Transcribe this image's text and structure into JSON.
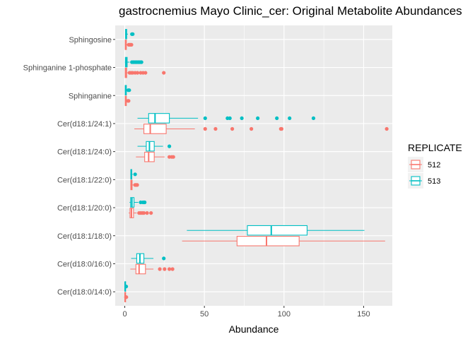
{
  "chart_data": {
    "type": "boxplot",
    "orientation": "horizontal",
    "title": "gastrocnemius Mayo Clinic_cer: Original Metabolite Abundances",
    "xlabel": "Abundance",
    "ylabel": "",
    "xlim": [
      -6,
      168
    ],
    "xticks": [
      0,
      50,
      100,
      150
    ],
    "grid": true,
    "legend": {
      "title": "REPLICATE",
      "placement": "right"
    },
    "categories": [
      "Sphingosine",
      "Sphinganine 1-phosphate",
      "Sphinganine",
      "Cer(d18:1/24:1)",
      "Cer(d18:1/24:0)",
      "Cer(d18:1/22:0)",
      "Cer(d18:1/20:0)",
      "Cer(d18:1/18:0)",
      "Cer(d18:0/16:0)",
      "Cer(d18:0/14:0)"
    ],
    "series": [
      {
        "name": "512",
        "color": "#F8766D",
        "boxes": [
          {
            "whisker_low": 0.1,
            "q1": 0.3,
            "median": 0.6,
            "q3": 1.0,
            "whisker_high": 2.0,
            "outliers": [
              2.5,
              3.0,
              3.6,
              4.2
            ]
          },
          {
            "whisker_low": 0.1,
            "q1": 0.3,
            "median": 0.6,
            "q3": 1.2,
            "whisker_high": 2.5,
            "outliers": [
              3.0,
              4.0,
              5.0,
              6.5,
              8.0,
              10.0,
              11.5,
              13.0,
              24.5
            ]
          },
          {
            "whisker_low": 0.1,
            "q1": 0.3,
            "median": 0.6,
            "q3": 1.0,
            "whisker_high": 1.5,
            "outliers": [
              2.0,
              2.4
            ]
          },
          {
            "whisker_low": 6.0,
            "q1": 12.0,
            "median": 16.0,
            "q3": 26.0,
            "whisker_high": 44.0,
            "outliers": [
              50.5,
              57.0,
              67.5,
              79.5,
              98.0,
              98.5,
              164.5
            ]
          },
          {
            "whisker_low": 7.0,
            "q1": 12.5,
            "median": 15.0,
            "q3": 18.5,
            "whisker_high": 25.0,
            "outliers": [
              28.0,
              29.5,
              30.5
            ]
          },
          {
            "whisker_low": 3.5,
            "q1": 3.8,
            "median": 4.1,
            "q3": 4.6,
            "whisker_high": 5.5,
            "outliers": [
              6.5,
              7.2,
              7.8
            ]
          },
          {
            "whisker_low": 2.5,
            "q1": 3.3,
            "median": 4.2,
            "q3": 5.5,
            "whisker_high": 7.5,
            "outliers": [
              9.0,
              10.0,
              11.0,
              12.0,
              14.0,
              16.5
            ]
          },
          {
            "whisker_low": 36.0,
            "q1": 70.5,
            "median": 89.0,
            "q3": 109.5,
            "whisker_high": 163.5,
            "outliers": []
          },
          {
            "whisker_low": 3.5,
            "q1": 7.0,
            "median": 9.0,
            "q3": 13.0,
            "whisker_high": 18.0,
            "outliers": [
              22.0,
              25.0,
              28.0,
              30.0
            ]
          },
          {
            "whisker_low": 0.0,
            "q1": 0.1,
            "median": 0.2,
            "q3": 0.4,
            "whisker_high": 0.6,
            "outliers": [
              0.8,
              1.0
            ]
          }
        ]
      },
      {
        "name": "513",
        "color": "#00BFC4",
        "boxes": [
          {
            "whisker_low": 0.2,
            "q1": 0.5,
            "median": 0.8,
            "q3": 1.2,
            "whisker_high": 2.0,
            "outliers": [
              4.5,
              5.0
            ]
          },
          {
            "whisker_low": 0.1,
            "q1": 0.4,
            "median": 0.9,
            "q3": 1.5,
            "whisker_high": 3.0,
            "outliers": [
              4.5,
              5.5,
              6.5,
              7.5,
              8.5,
              9.5,
              10.5
            ]
          },
          {
            "whisker_low": 0.1,
            "q1": 0.3,
            "median": 0.6,
            "q3": 1.0,
            "whisker_high": 1.5,
            "outliers": [
              2.2,
              2.8
            ]
          },
          {
            "whisker_low": 8.0,
            "q1": 15.0,
            "median": 19.0,
            "q3": 28.0,
            "whisker_high": 46.0,
            "outliers": [
              50.5,
              64.5,
              66.0,
              73.5,
              83.5,
              95.5,
              103.5,
              118.5
            ]
          },
          {
            "whisker_low": 8.0,
            "q1": 13.5,
            "median": 15.5,
            "q3": 18.5,
            "whisker_high": 24.0,
            "outliers": [
              28.0
            ]
          },
          {
            "whisker_low": 3.5,
            "q1": 3.8,
            "median": 4.0,
            "q3": 4.4,
            "whisker_high": 5.0,
            "outliers": [
              6.5
            ]
          },
          {
            "whisker_low": 3.0,
            "q1": 3.7,
            "median": 4.5,
            "q3": 5.8,
            "whisker_high": 8.5,
            "outliers": [
              10.0,
              11.5,
              12.5
            ]
          },
          {
            "whisker_low": 39.0,
            "q1": 77.0,
            "median": 92.0,
            "q3": 114.5,
            "whisker_high": 150.5,
            "outliers": []
          },
          {
            "whisker_low": 4.0,
            "q1": 7.5,
            "median": 9.5,
            "q3": 12.0,
            "whisker_high": 18.0,
            "outliers": [
              24.5
            ]
          },
          {
            "whisker_low": 0.0,
            "q1": 0.1,
            "median": 0.2,
            "q3": 0.4,
            "whisker_high": 0.6,
            "outliers": [
              0.9
            ]
          }
        ]
      }
    ]
  }
}
